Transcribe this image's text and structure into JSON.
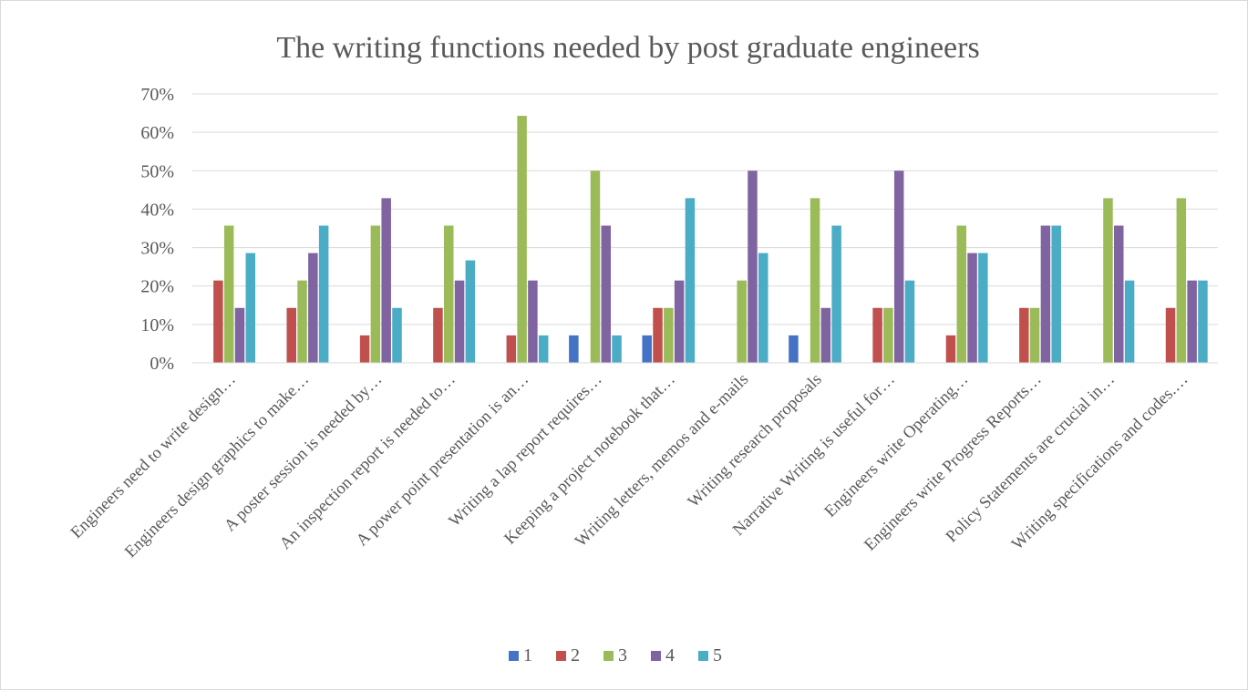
{
  "chart_data": {
    "type": "bar",
    "title": "The writing functions needed by post graduate engineers",
    "xlabel": "",
    "ylabel": "",
    "ylim": [
      0,
      0.7
    ],
    "y_ticks": [
      "0%",
      "10%",
      "20%",
      "30%",
      "40%",
      "50%",
      "60%",
      "70%"
    ],
    "y_tick_values": [
      0,
      0.1,
      0.2,
      0.3,
      0.4,
      0.5,
      0.6,
      0.7
    ],
    "grid": true,
    "legend_position": "bottom",
    "categories": [
      "Engineers need to write design…",
      "Engineers design graphics to make…",
      "A poster session is needed by…",
      "An inspection report is needed to…",
      "A power point presentation is an…",
      "Writing a lap report requires…",
      "Keeping a project notebook that…",
      "Writing letters, memos and e-mails",
      "Writing research proposals",
      "Narrative Writing is useful for…",
      "Engineers write Operating…",
      "Engineers write Progress Reports…",
      "Policy Statements are crucial in…",
      "Writing specifications and codes.…"
    ],
    "series": [
      {
        "name": "1",
        "color": "#4472c4",
        "values": [
          0,
          0,
          0,
          0,
          0,
          0.0714,
          0.0714,
          0,
          0.0714,
          0,
          0,
          0,
          0,
          0
        ]
      },
      {
        "name": "2",
        "color": "#c0504d",
        "values": [
          0.2143,
          0.1429,
          0.0714,
          0.1429,
          0.0714,
          0,
          0.1429,
          0,
          0,
          0.1429,
          0.0714,
          0.1429,
          0,
          0.1429
        ]
      },
      {
        "name": "3",
        "color": "#9bbb59",
        "values": [
          0.3571,
          0.2143,
          0.3571,
          0.3571,
          0.6429,
          0.5,
          0.1429,
          0.2143,
          0.4286,
          0.1429,
          0.3571,
          0.1429,
          0.4286,
          0.4286
        ]
      },
      {
        "name": "4",
        "color": "#8064a2",
        "values": [
          0.1429,
          0.2857,
          0.4286,
          0.2143,
          0.2143,
          0.3571,
          0.2143,
          0.5,
          0.1429,
          0.5,
          0.2857,
          0.3571,
          0.3571,
          0.2143
        ]
      },
      {
        "name": "5",
        "color": "#4bacc6",
        "values": [
          0.2857,
          0.3571,
          0.1429,
          0.2667,
          0.0714,
          0.0714,
          0.4286,
          0.2857,
          0.3571,
          0.2143,
          0.2857,
          0.3571,
          0.2143,
          0.2143
        ]
      }
    ]
  }
}
